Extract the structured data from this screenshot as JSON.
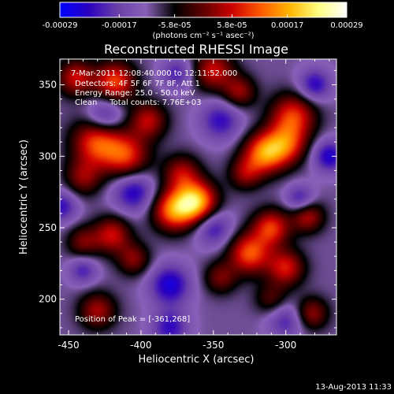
{
  "chart_data": {
    "type": "heatmap",
    "title": "Reconstructed RHESSI Image",
    "xlabel": "Heliocentric X (arcsec)",
    "ylabel": "Heliocentric Y (arcsec)",
    "xlim": [
      -456,
      -265
    ],
    "ylim": [
      175,
      368
    ],
    "x_ticks": [
      -450,
      -400,
      -350,
      -300
    ],
    "y_ticks": [
      200,
      250,
      300,
      350
    ],
    "colorbar": {
      "units_label": "(photons cm⁻² s⁻¹ asec⁻²)",
      "min": -0.00029,
      "max": 0.00029,
      "ticks": [
        -0.00029,
        -0.00017,
        -5.8e-05,
        5.8e-05,
        0.00017,
        0.00029
      ],
      "tick_labels": [
        "-0.00029",
        "-0.00017",
        "-5.8e-05",
        "5.8e-05",
        "0.00017",
        "0.00029"
      ],
      "stops": [
        "#0000ff",
        "#2a00bf",
        "#6a40a8",
        "#8860b8",
        "#000000",
        "#600000",
        "#cc0000",
        "#ff5a00",
        "#ffb400",
        "#ffff80",
        "#ffffff"
      ]
    },
    "annotations": [
      "7-Mar-2011 12:08:40.000 to 12:11:52.000",
      "Detectors: 4F 5F 6F 7F 8F, Att 1",
      "Energy Range: 25.0 - 50.0 keV",
      "Clean     Total counts: 7.76E+03"
    ],
    "peak_label": "Position of Peak = [-361,268]",
    "sources": [
      {
        "x": -362,
        "y": 268,
        "amp": 0.00029,
        "sigma": 10
      },
      {
        "x": -378,
        "y": 262,
        "amp": 0.00022,
        "sigma": 10
      },
      {
        "x": -372,
        "y": 288,
        "amp": 0.00014,
        "sigma": 9
      },
      {
        "x": -430,
        "y": 310,
        "amp": 0.00021,
        "sigma": 12
      },
      {
        "x": -410,
        "y": 300,
        "amp": 0.00018,
        "sigma": 11
      },
      {
        "x": -395,
        "y": 325,
        "amp": 0.00015,
        "sigma": 9
      },
      {
        "x": -440,
        "y": 285,
        "amp": 0.00012,
        "sigma": 9
      },
      {
        "x": -418,
        "y": 352,
        "amp": 0.0002,
        "sigma": 10
      },
      {
        "x": -445,
        "y": 355,
        "amp": 0.00016,
        "sigma": 9
      },
      {
        "x": -350,
        "y": 360,
        "amp": 0.00016,
        "sigma": 10
      },
      {
        "x": -332,
        "y": 345,
        "amp": 0.00013,
        "sigma": 8
      },
      {
        "x": -295,
        "y": 328,
        "amp": 0.00019,
        "sigma": 11
      },
      {
        "x": -315,
        "y": 302,
        "amp": 0.00023,
        "sigma": 10
      },
      {
        "x": -300,
        "y": 308,
        "amp": 0.00018,
        "sigma": 10
      },
      {
        "x": -328,
        "y": 288,
        "amp": 0.00012,
        "sigma": 8
      },
      {
        "x": -310,
        "y": 250,
        "amp": 0.00019,
        "sigma": 9
      },
      {
        "x": -285,
        "y": 258,
        "amp": 0.00015,
        "sigma": 8
      },
      {
        "x": -325,
        "y": 232,
        "amp": 0.00021,
        "sigma": 10
      },
      {
        "x": -300,
        "y": 222,
        "amp": 0.00017,
        "sigma": 9
      },
      {
        "x": -345,
        "y": 215,
        "amp": 0.00011,
        "sigma": 8
      },
      {
        "x": -420,
        "y": 245,
        "amp": 0.00016,
        "sigma": 9
      },
      {
        "x": -440,
        "y": 240,
        "amp": 0.00011,
        "sigma": 8
      },
      {
        "x": -405,
        "y": 228,
        "amp": 0.00012,
        "sigma": 8
      },
      {
        "x": -430,
        "y": 192,
        "amp": 0.00014,
        "sigma": 9
      },
      {
        "x": -282,
        "y": 190,
        "amp": 0.00013,
        "sigma": 8
      },
      {
        "x": -310,
        "y": 200,
        "amp": 9e-05,
        "sigma": 8
      },
      {
        "x": -425,
        "y": 328,
        "amp": -0.00013,
        "sigma": 9
      },
      {
        "x": -405,
        "y": 275,
        "amp": -0.00014,
        "sigma": 10
      },
      {
        "x": -345,
        "y": 325,
        "amp": -0.00012,
        "sigma": 10
      },
      {
        "x": -350,
        "y": 250,
        "amp": -0.00012,
        "sigma": 9
      },
      {
        "x": -380,
        "y": 210,
        "amp": -0.00015,
        "sigma": 10
      },
      {
        "x": -290,
        "y": 270,
        "amp": -0.00012,
        "sigma": 7
      },
      {
        "x": -270,
        "y": 300,
        "amp": -0.00014,
        "sigma": 8
      },
      {
        "x": -280,
        "y": 350,
        "amp": -0.00013,
        "sigma": 8
      },
      {
        "x": -455,
        "y": 265,
        "amp": -0.00012,
        "sigma": 8
      },
      {
        "x": -375,
        "y": 358,
        "amp": -0.0001,
        "sigma": 8
      },
      {
        "x": -380,
        "y": 180,
        "amp": -0.00012,
        "sigma": 9
      },
      {
        "x": -300,
        "y": 185,
        "amp": -0.0001,
        "sigma": 9
      },
      {
        "x": -440,
        "y": 220,
        "amp": -0.0001,
        "sigma": 7
      }
    ]
  },
  "footer": {
    "timestamp": "13-Aug-2013 11:33"
  }
}
